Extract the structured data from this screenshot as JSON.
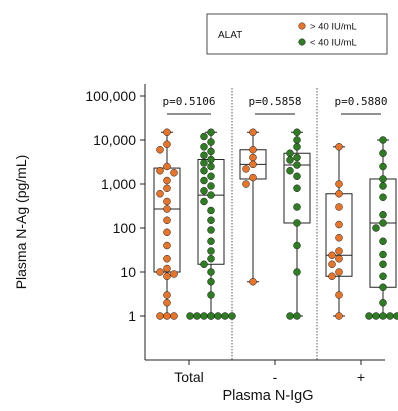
{
  "chart_data": {
    "type": "box-dot",
    "xlabel": "Plasma N-IgG",
    "ylabel": "Plasma N-Ag (pg/mL)",
    "y_scale": "log",
    "ylim": [
      0.3,
      100000
    ],
    "ytick_labels": [
      "1",
      "10",
      "100",
      "1,000",
      "10,000",
      "100,000"
    ],
    "yticks": [
      1,
      10,
      100,
      1000,
      10000,
      100000
    ],
    "categories": [
      "Total",
      "-",
      "+"
    ],
    "legend": {
      "title": "ALAT",
      "placement": "top-right",
      "entries": [
        "> 40 IU/mL",
        "< 40 IU/mL"
      ]
    },
    "colors": {
      "high": "#e8742a",
      "low": "#2f7d22"
    },
    "pvalues": [
      "p=0.5106",
      "p=0.5858",
      "p=0.5880"
    ],
    "groups": [
      {
        "category": "Total",
        "high": {
          "box": {
            "q1": 10,
            "median": 270,
            "q3": 2300,
            "min": 1,
            "max": 15000
          },
          "values": [
            15000,
            8000,
            6000,
            2500,
            2000,
            1800,
            1200,
            800,
            600,
            400,
            270,
            150,
            80,
            40,
            20,
            12,
            10,
            9,
            8,
            3,
            2,
            1,
            1,
            1
          ]
        },
        "low": {
          "box": {
            "q1": 15,
            "median": 560,
            "q3": 3600,
            "min": 1,
            "max": 15000
          },
          "values": [
            15000,
            12000,
            9000,
            7000,
            5500,
            4500,
            3600,
            3000,
            2500,
            2000,
            1500,
            1200,
            900,
            700,
            560,
            400,
            250,
            150,
            90,
            50,
            30,
            20,
            15,
            10,
            6,
            3,
            1,
            1,
            1,
            1,
            1,
            1,
            1,
            1
          ]
        }
      },
      {
        "category": "-",
        "high": {
          "box": {
            "q1": 1300,
            "median": 2800,
            "q3": 6000,
            "min": 6,
            "max": 15000
          },
          "values": [
            15000,
            6000,
            4000,
            2800,
            2200,
            1400,
            1000,
            6
          ]
        },
        "low": {
          "box": {
            "q1": 130,
            "median": 2700,
            "q3": 5000,
            "min": 1,
            "max": 15000
          },
          "values": [
            15000,
            10000,
            7000,
            5000,
            4000,
            3500,
            2700,
            2000,
            1500,
            800,
            300,
            130,
            40,
            10,
            1,
            1
          ]
        }
      },
      {
        "category": "+",
        "high": {
          "box": {
            "q1": 8,
            "median": 24,
            "q3": 600,
            "min": 1,
            "max": 7000
          },
          "values": [
            7000,
            1000,
            600,
            300,
            120,
            60,
            30,
            24,
            20,
            15,
            10,
            8,
            3,
            1
          ]
        },
        "low": {
          "box": {
            "q1": 4.5,
            "median": 130,
            "q3": 1300,
            "min": 1,
            "max": 10000
          },
          "values": [
            10000,
            5000,
            2500,
            1300,
            900,
            500,
            200,
            130,
            100,
            50,
            25,
            15,
            8,
            4.5,
            2,
            1,
            1,
            1,
            1,
            1
          ]
        }
      }
    ]
  }
}
